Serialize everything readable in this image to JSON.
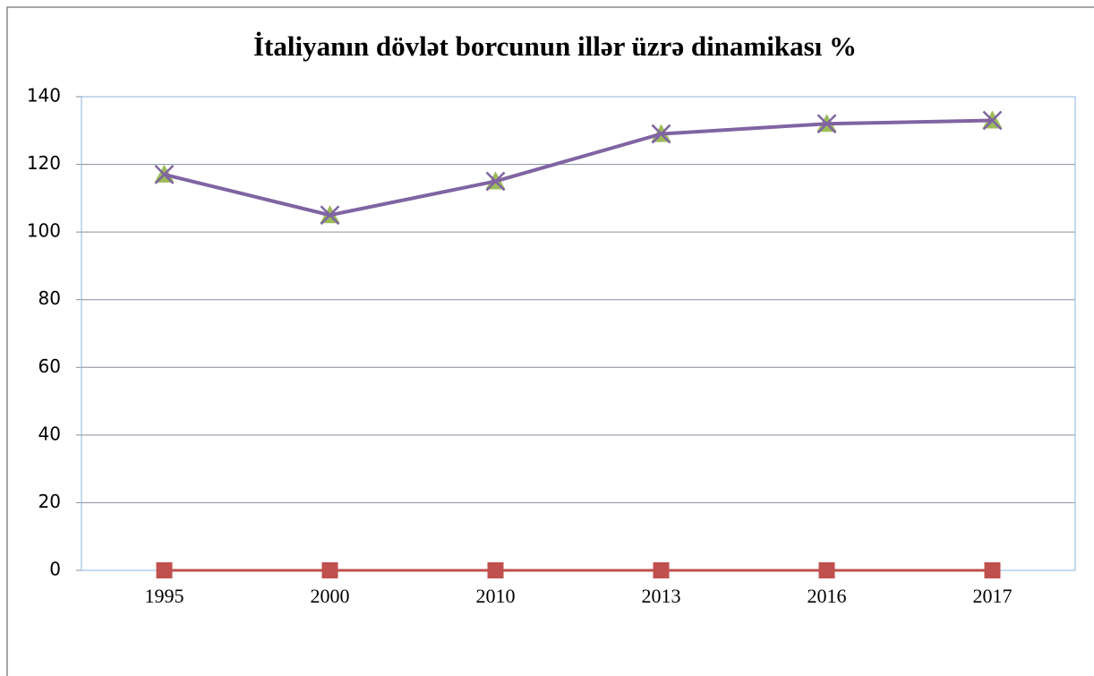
{
  "chart_data": {
    "type": "line",
    "title": "İtaliyanın dövlət borcunun illər üzrə dinamikası %",
    "categories": [
      "1995",
      "2000",
      "2010",
      "2013",
      "2016",
      "2017"
    ],
    "series": [
      {
        "color": "#c0504d",
        "marker": "square",
        "values": [
          0,
          0,
          0,
          0,
          0,
          0
        ]
      },
      {
        "color": "#9bbb59",
        "marker": "triangle",
        "values": [
          117,
          105,
          115,
          129,
          132,
          133
        ]
      },
      {
        "color": "#8064a2",
        "marker": "x",
        "values": [
          117,
          105,
          115,
          129,
          132,
          133
        ]
      }
    ],
    "ylim": [
      0,
      140
    ],
    "yticks": [
      0,
      20,
      40,
      60,
      80,
      100,
      120,
      140
    ],
    "grid": true
  }
}
